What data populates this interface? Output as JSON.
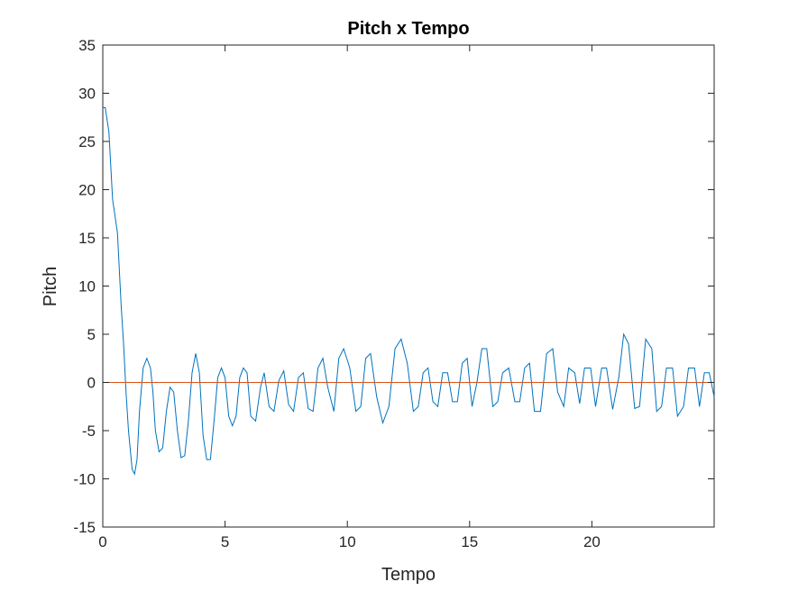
{
  "chart_data": {
    "type": "line",
    "title": "Pitch x Tempo",
    "xlabel": "Tempo",
    "ylabel": "Pitch",
    "xlim": [
      0,
      25
    ],
    "ylim": [
      -15,
      35
    ],
    "x_ticks": [
      0,
      5,
      10,
      15,
      20
    ],
    "x_tick_labels": [
      "0",
      "5",
      "10",
      "15",
      "20"
    ],
    "y_ticks": [
      -15,
      -10,
      -5,
      0,
      5,
      10,
      15,
      20,
      25,
      30,
      35
    ],
    "y_tick_labels": [
      "-15",
      "-10",
      "-5",
      "0",
      "5",
      "10",
      "15",
      "20",
      "25",
      "30",
      "35"
    ],
    "grid": false,
    "box": true,
    "series": [
      {
        "color": "#0072BD",
        "x": [
          0,
          0.1,
          0.25,
          0.4,
          0.6,
          0.75,
          0.85,
          0.95,
          1.05,
          1.2,
          1.3,
          1.4,
          1.5,
          1.65,
          1.8,
          1.95,
          2.05,
          2.15,
          2.3,
          2.45,
          2.6,
          2.75,
          2.9,
          3.05,
          3.2,
          3.35,
          3.5,
          3.65,
          3.8,
          3.95,
          4.1,
          4.25,
          4.4,
          4.55,
          4.7,
          4.85,
          5.0,
          5.15,
          5.3,
          5.45,
          5.6,
          5.75,
          5.9,
          6.05,
          6.25,
          6.45,
          6.6,
          6.8,
          7.0,
          7.2,
          7.4,
          7.6,
          7.8,
          8.0,
          8.2,
          8.4,
          8.6,
          8.8,
          9.0,
          9.2,
          9.45,
          9.65,
          9.85,
          10.1,
          10.35,
          10.55,
          10.75,
          10.95,
          11.2,
          11.45,
          11.7,
          11.95,
          12.2,
          12.45,
          12.7,
          12.9,
          13.1,
          13.3,
          13.5,
          13.7,
          13.9,
          14.1,
          14.3,
          14.5,
          14.7,
          14.9,
          15.1,
          15.3,
          15.5,
          15.7,
          15.95,
          16.15,
          16.35,
          16.6,
          16.85,
          17.05,
          17.25,
          17.45,
          17.65,
          17.9,
          18.15,
          18.4,
          18.6,
          18.85,
          19.05,
          19.3,
          19.5,
          19.7,
          19.95,
          20.15,
          20.4,
          20.6,
          20.85,
          21.1,
          21.3,
          21.5,
          21.75,
          21.95,
          22.2,
          22.45,
          22.65,
          22.85,
          23.05,
          23.3,
          23.5,
          23.75,
          23.95,
          24.2,
          24.4,
          24.6,
          24.8,
          25.0
        ],
        "y": [
          28.5,
          28.5,
          26,
          19,
          15.5,
          8,
          4,
          -1,
          -5,
          -9,
          -9.5,
          -8,
          -3,
          1.5,
          2.5,
          1.5,
          -1,
          -5,
          -7.2,
          -6.8,
          -3,
          -0.5,
          -1,
          -5,
          -7.8,
          -7.6,
          -4,
          1,
          3,
          1,
          -5.5,
          -8,
          -8,
          -4,
          0.5,
          1.5,
          0.5,
          -3.5,
          -4.5,
          -3.5,
          0.5,
          1.5,
          1,
          -3.5,
          -4,
          -0.5,
          1,
          -2.5,
          -3,
          0.2,
          1.2,
          -2.3,
          -3,
          0.5,
          1,
          -2.7,
          -3,
          1.5,
          2.5,
          -0.5,
          -3,
          2.5,
          3.5,
          1.5,
          -3,
          -2.5,
          2.5,
          3,
          -1.5,
          -4.2,
          -2.5,
          3.5,
          4.5,
          2,
          -3,
          -2.5,
          1,
          1.5,
          -2,
          -2.5,
          1,
          1,
          -2,
          -2,
          2,
          2.5,
          -2.5,
          0,
          3.5,
          3.5,
          -2.5,
          -2,
          1,
          1.5,
          -2,
          -2,
          1.5,
          2,
          -3,
          -3,
          3,
          3.5,
          -1,
          -2.5,
          1.5,
          1,
          -2.2,
          1.5,
          1.5,
          -2.5,
          1.5,
          1.5,
          -2.8,
          0.5,
          5,
          4,
          -2.7,
          -2.5,
          4.5,
          3.5,
          -3,
          -2.5,
          1.5,
          1.5,
          -3.5,
          -2.5,
          1.5,
          1.5,
          -2.5,
          1,
          1,
          -1.5
        ]
      },
      {
        "color": "#D95319",
        "x": [
          0,
          25
        ],
        "y": [
          0,
          0
        ]
      }
    ]
  }
}
